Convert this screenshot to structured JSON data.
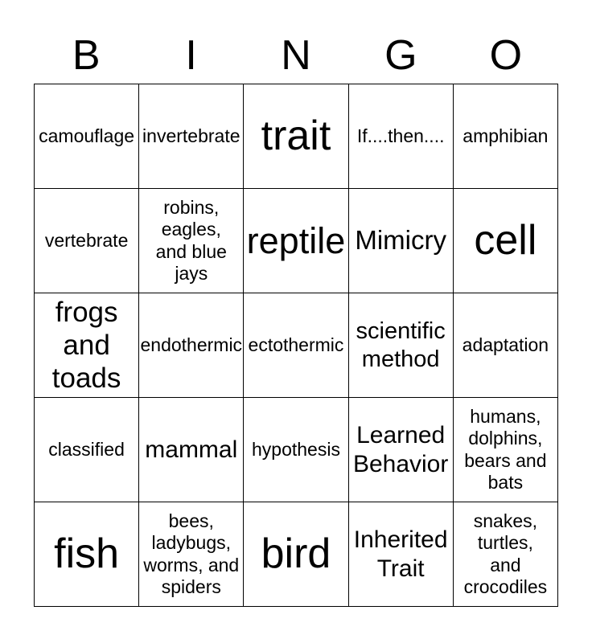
{
  "header": {
    "letters": [
      "B",
      "I",
      "N",
      "G",
      "O"
    ]
  },
  "board": {
    "cells": [
      {
        "text": "camouflage"
      },
      {
        "text": "invertebrate"
      },
      {
        "text": "trait"
      },
      {
        "text": "If....then...."
      },
      {
        "text": "amphibian"
      },
      {
        "text": "vertebrate"
      },
      {
        "text": "robins,\neagles,\nand blue\njays"
      },
      {
        "text": "reptile"
      },
      {
        "text": "Mimicry"
      },
      {
        "text": "cell"
      },
      {
        "text": "frogs\nand\ntoads"
      },
      {
        "text": "endothermic"
      },
      {
        "text": "ectothermic"
      },
      {
        "text": "scientific\nmethod"
      },
      {
        "text": "adaptation"
      },
      {
        "text": "classified"
      },
      {
        "text": "mammal"
      },
      {
        "text": "hypothesis"
      },
      {
        "text": "Learned\nBehavior"
      },
      {
        "text": "humans,\ndolphins,\nbears and\nbats"
      },
      {
        "text": "fish"
      },
      {
        "text": "bees,\nladybugs,\nworms, and\nspiders"
      },
      {
        "text": "bird"
      },
      {
        "text": "Inherited\nTrait"
      },
      {
        "text": "snakes,\nturtles,\nand\ncrocodiles"
      }
    ]
  }
}
